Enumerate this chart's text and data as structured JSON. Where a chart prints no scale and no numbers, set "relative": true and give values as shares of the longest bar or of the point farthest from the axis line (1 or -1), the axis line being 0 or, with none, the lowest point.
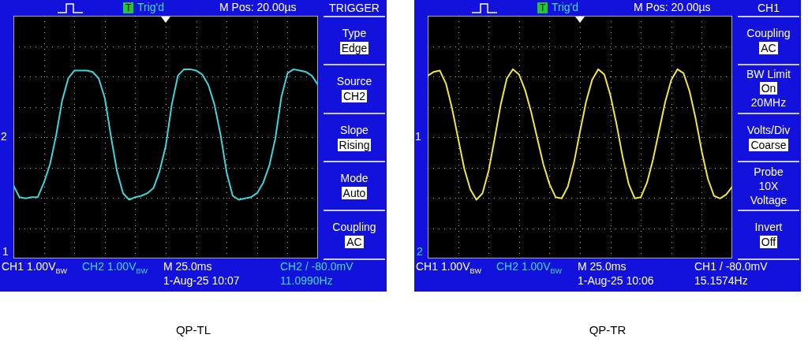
{
  "chart_data": [
    {
      "type": "line",
      "title": "QP-TL",
      "relative": true,
      "grid": true,
      "marker": "none",
      "line_style": "solid",
      "categories": [
        null,
        null,
        null,
        null,
        null,
        null,
        null,
        null,
        null,
        null,
        null,
        null,
        null,
        null,
        null,
        null,
        null,
        null,
        null,
        null,
        null,
        null,
        null,
        null,
        null,
        null,
        null,
        null,
        null,
        null,
        null,
        null,
        null,
        null,
        null,
        null,
        null,
        null,
        null,
        null,
        null,
        null,
        null,
        null,
        null,
        null,
        null,
        null,
        null,
        null,
        null
      ],
      "series": [
        {
          "color": "#40d4dc",
          "values": [
            0.11,
            0.02,
            0.01,
            0.02,
            0.02,
            0.13,
            0.27,
            0.49,
            0.76,
            0.93,
            0.99,
            0.99,
            0.99,
            0.98,
            0.93,
            0.78,
            0.49,
            0.22,
            0.05,
            0,
            0.02,
            0.03,
            0.05,
            0.09,
            0.22,
            0.41,
            0.73,
            0.95,
            1,
            1,
            0.99,
            0.96,
            0.88,
            0.73,
            0.5,
            0.21,
            0.03,
            0,
            0.01,
            0.02,
            0.05,
            0.13,
            0.26,
            0.47,
            0.79,
            0.97,
            1,
            0.99,
            0.98,
            0.95,
            0.88
          ]
        }
      ],
      "annotations": [
        "T",
        "Trig'd",
        "M Pos: 20.00µs",
        "TRIGGER",
        "Type",
        "Edge",
        "Source",
        "CH2",
        "Slope",
        "Rising",
        "Mode",
        "Auto",
        "Coupling",
        "AC",
        "2",
        "1",
        "CH1  1.00V$_{BW}$",
        "CH2  1.00V$_{BW}$",
        "M 25.0ms",
        "CH2 / -80.0mV",
        "1-Aug-25 10:07",
        "11.0990Hz"
      ]
    },
    {
      "type": "line",
      "title": "QP-TR",
      "relative": true,
      "grid": true,
      "marker": "none",
      "line_style": "solid",
      "categories": [
        null,
        null,
        null,
        null,
        null,
        null,
        null,
        null,
        null,
        null,
        null,
        null,
        null,
        null,
        null,
        null,
        null,
        null,
        null,
        null,
        null,
        null,
        null,
        null,
        null,
        null,
        null,
        null,
        null,
        null,
        null,
        null,
        null,
        null,
        null,
        null,
        null,
        null,
        null,
        null,
        null,
        null,
        null,
        null,
        null,
        null,
        null,
        null,
        null,
        null,
        null
      ],
      "series": [
        {
          "color": "#f2e640",
          "values": [
            0.95,
            0.98,
            0.99,
            0.89,
            0.7,
            0.47,
            0.24,
            0.08,
            0,
            0.05,
            0.22,
            0.47,
            0.73,
            0.93,
            1,
            0.96,
            0.84,
            0.67,
            0.47,
            0.27,
            0.12,
            0.02,
            0.01,
            0.1,
            0.28,
            0.52,
            0.75,
            0.92,
            1,
            0.96,
            0.8,
            0.58,
            0.33,
            0.12,
            0.01,
            0.02,
            0.13,
            0.31,
            0.53,
            0.75,
            0.92,
            1,
            0.97,
            0.83,
            0.62,
            0.37,
            0.16,
            0.03,
            0.01,
            0.04,
            0.1
          ]
        }
      ],
      "annotations": [
        "T",
        "Trig'd",
        "M Pos: 20.00µs",
        "CH1",
        "Coupling",
        "AC",
        "BW Limit",
        "On",
        "20MHz",
        "Volts/Div",
        "Coarse",
        "Probe",
        "10X",
        "Voltage",
        "Invert",
        "Off",
        "1",
        "2",
        "CH1  1.00V$_{BW}$",
        "CH2  1.00V$_{BW}$",
        "M 25.0ms",
        "CH1 / -80.0mV",
        "1-Aug-25 10:06",
        "15.1574Hz"
      ]
    }
  ]
}
